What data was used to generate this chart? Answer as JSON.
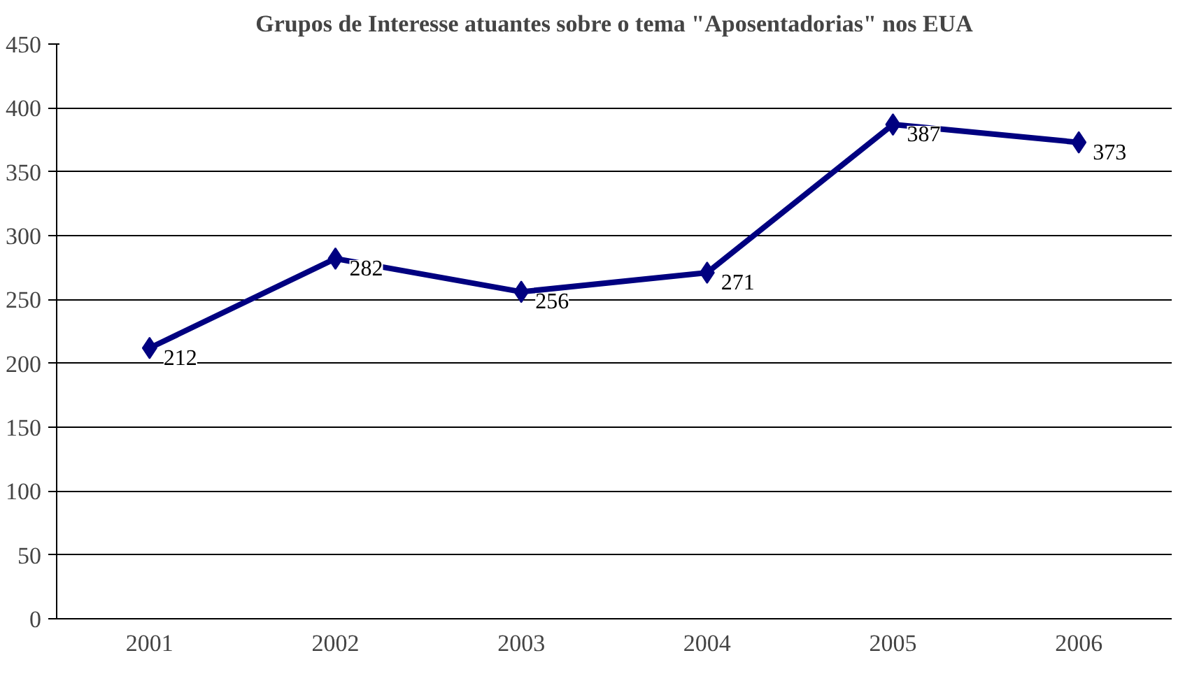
{
  "chart_data": {
    "type": "line",
    "title": "Grupos de Interesse atuantes sobre o tema \"Aposentadorias\" nos EUA",
    "categories": [
      "2001",
      "2002",
      "2003",
      "2004",
      "2005",
      "2006"
    ],
    "series": [
      {
        "color": "#000080",
        "values": [
          212,
          282,
          256,
          271,
          387,
          373
        ]
      }
    ],
    "ylim": [
      0,
      450
    ],
    "yticks": [
      0,
      50,
      100,
      150,
      200,
      250,
      300,
      350,
      400,
      450
    ],
    "grid": "y",
    "marker": "diamond",
    "line_style": "solid",
    "data_labels": true
  }
}
